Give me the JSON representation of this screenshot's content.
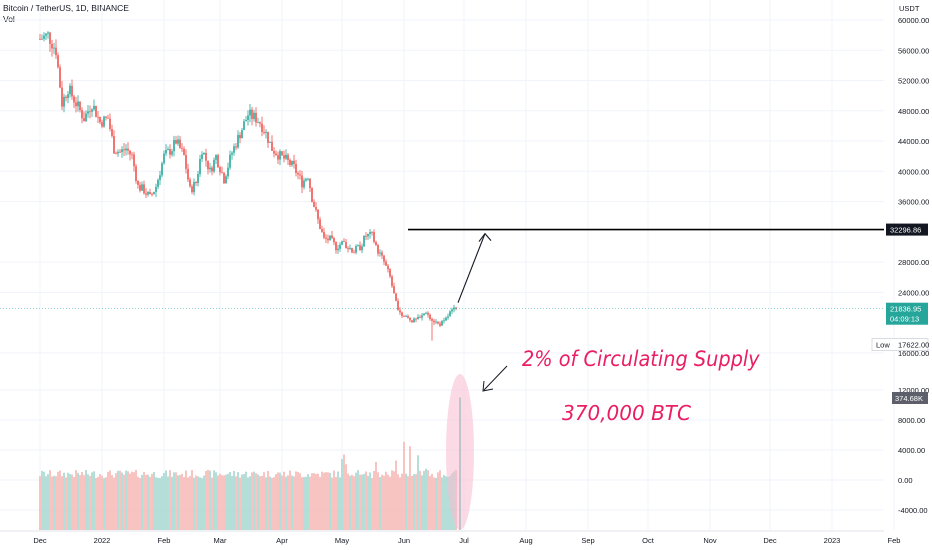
{
  "header": {
    "symbol": "Bitcoin / TetherUS, 1D, BINANCE",
    "volume_label": "Vol"
  },
  "chart_data": {
    "type": "candlestick",
    "currency_label": "USDT",
    "price_axis": {
      "ylim": [
        14000,
        60000
      ],
      "ticks": [
        "60000.00",
        "56000.00",
        "52000.00",
        "48000.00",
        "44000.00",
        "40000.00",
        "36000.00",
        "28000.00",
        "24000.00",
        "16000.00"
      ]
    },
    "volume_axis": {
      "ticks": [
        "12000.00",
        "8000.00",
        "4000.00",
        "0.00",
        "-4000.00"
      ]
    },
    "x_ticks": [
      "Dec",
      "2022",
      "Feb",
      "Mar",
      "Apr",
      "May",
      "Jun",
      "Jul",
      "Aug",
      "Sep",
      "Oct",
      "Nov",
      "Dec",
      "2023",
      "Feb"
    ],
    "x_tick_days": [
      0,
      31,
      62,
      90,
      121,
      151,
      182,
      212,
      243,
      274,
      304,
      335,
      365,
      396,
      427
    ],
    "price_path": [
      [
        0,
        57500
      ],
      [
        4,
        58000
      ],
      [
        8,
        56000
      ],
      [
        11,
        49000
      ],
      [
        14,
        51000
      ],
      [
        18,
        49000
      ],
      [
        22,
        47000
      ],
      [
        26,
        49000
      ],
      [
        30,
        46500
      ],
      [
        34,
        47000
      ],
      [
        37,
        43000
      ],
      [
        40,
        42500
      ],
      [
        43,
        43000
      ],
      [
        46,
        42000
      ],
      [
        49,
        38000
      ],
      [
        52,
        37500
      ],
      [
        55,
        36500
      ],
      [
        58,
        38000
      ],
      [
        62,
        42000
      ],
      [
        66,
        43000
      ],
      [
        68,
        44000
      ],
      [
        72,
        42000
      ],
      [
        75,
        37500
      ],
      [
        78,
        38500
      ],
      [
        81,
        43000
      ],
      [
        85,
        40000
      ],
      [
        88,
        42000
      ],
      [
        92,
        39000
      ],
      [
        96,
        42500
      ],
      [
        100,
        45000
      ],
      [
        104,
        47500
      ],
      [
        108,
        47000
      ],
      [
        110,
        46500
      ],
      [
        113,
        45000
      ],
      [
        116,
        43000
      ],
      [
        120,
        42000
      ],
      [
        123,
        41500
      ],
      [
        127,
        40500
      ],
      [
        131,
        38500
      ],
      [
        134,
        39500
      ],
      [
        136,
        36500
      ],
      [
        139,
        33500
      ],
      [
        142,
        31000
      ],
      [
        145,
        31000
      ],
      [
        148,
        30000
      ],
      [
        151,
        30500
      ],
      [
        154,
        30000
      ],
      [
        157,
        29500
      ],
      [
        160,
        30000
      ],
      [
        163,
        31500
      ],
      [
        166,
        31500
      ],
      [
        169,
        29500
      ],
      [
        172,
        28000
      ],
      [
        175,
        26000
      ],
      [
        178,
        22500
      ],
      [
        181,
        21000
      ],
      [
        184,
        20500
      ],
      [
        187,
        20200
      ],
      [
        190,
        20500
      ],
      [
        193,
        21500
      ],
      [
        196,
        20500
      ],
      [
        199,
        19800
      ],
      [
        202,
        20000
      ],
      [
        205,
        21300
      ],
      [
        208,
        21840
      ]
    ],
    "low_point": {
      "day": 196,
      "value": 17622
    },
    "last_price": {
      "value": 21836.95,
      "label": "21836.95",
      "timer": "04:09:13"
    },
    "low_label": {
      "text": "Low",
      "value": "17622.00"
    },
    "resistance": {
      "value": 32296.86,
      "label": "32296.86",
      "from_day": 184
    },
    "volume": {
      "last_value_label": "374.68K",
      "spikes": [
        [
          151,
          2800
        ],
        [
          152,
          3400
        ],
        [
          153,
          2100
        ],
        [
          168,
          2400
        ],
        [
          178,
          2600
        ],
        [
          182,
          5100
        ],
        [
          185,
          4500
        ],
        [
          189,
          3300
        ],
        [
          193,
          1500
        ],
        [
          210,
          11000
        ]
      ]
    },
    "annotations": [
      {
        "text": "2% of Circulating Supply",
        "color": "#e91e63"
      },
      {
        "text": "370,000 BTC",
        "color": "#e91e63"
      }
    ],
    "colors": {
      "up": "#26a69a",
      "down": "#ef5350",
      "up_volume": "#a5d6cf",
      "down_volume": "#f5b5b3",
      "annotation": "#e91e63",
      "highlight_ellipse": "#f8bbd0",
      "resistance_line": "#000000"
    }
  }
}
